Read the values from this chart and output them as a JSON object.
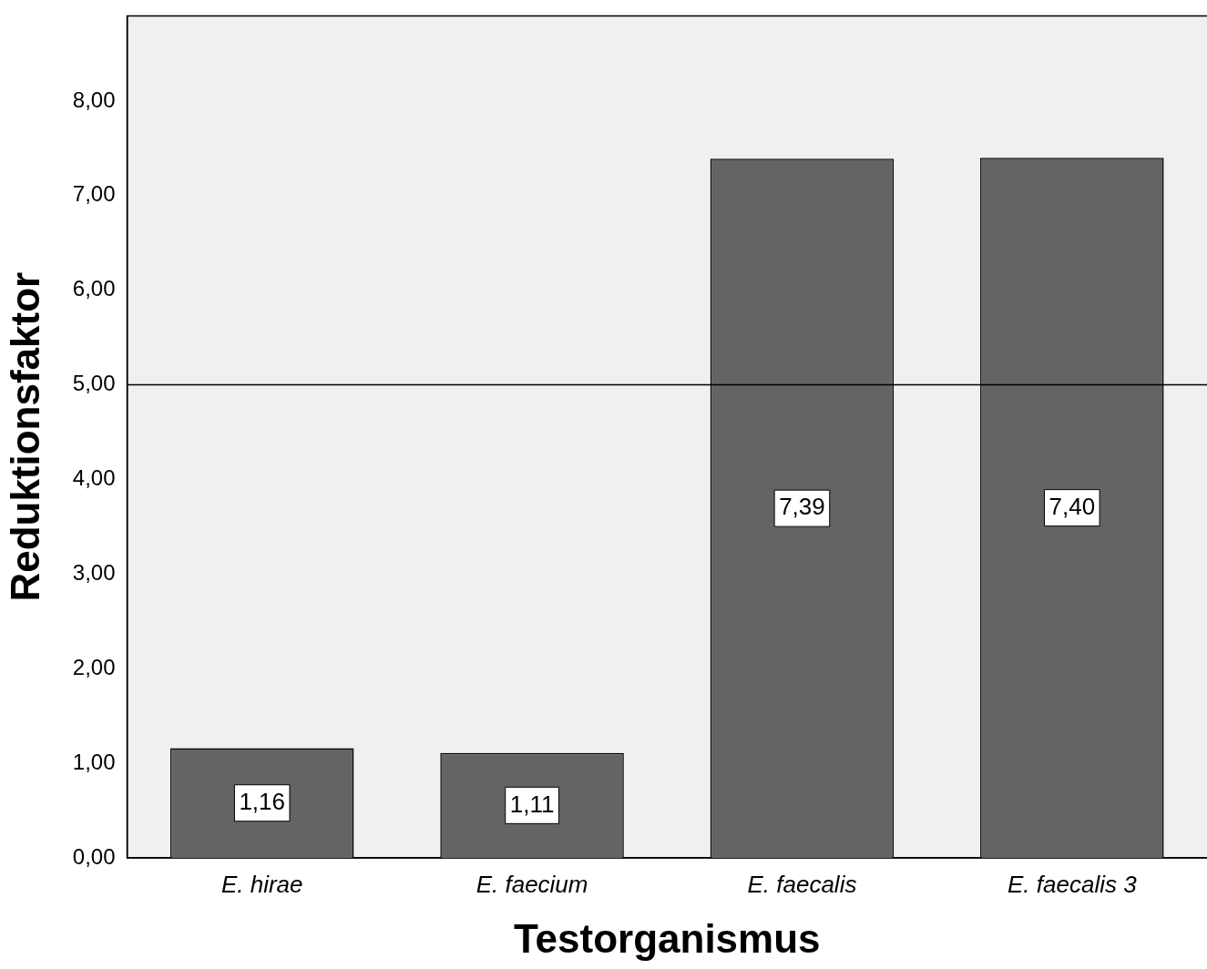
{
  "chart_data": {
    "type": "bar",
    "xlabel": "Testorganismus",
    "ylabel": "Reduktionsfaktor",
    "categories": [
      "E. hirae",
      "E. faecium",
      "E. faecalis",
      "E. faecalis 3"
    ],
    "values": [
      1.16,
      1.11,
      7.39,
      7.4
    ],
    "value_labels": [
      "1,16",
      "1,11",
      "7,39",
      "7,40"
    ],
    "color": "#646464",
    "ylim": [
      0,
      8.9
    ],
    "yticks": [
      {
        "value": 0,
        "label": "0,00"
      },
      {
        "value": 1,
        "label": "1,00"
      },
      {
        "value": 2,
        "label": "2,00"
      },
      {
        "value": 3,
        "label": "3,00"
      },
      {
        "value": 4,
        "label": "4,00"
      },
      {
        "value": 5,
        "label": "5,00"
      },
      {
        "value": 6,
        "label": "6,00"
      },
      {
        "value": 7,
        "label": "7,00"
      },
      {
        "value": 8,
        "label": "8,00"
      }
    ],
    "ref_lines": [
      {
        "axis": "y",
        "value": 5,
        "color": "#000000"
      }
    ]
  }
}
